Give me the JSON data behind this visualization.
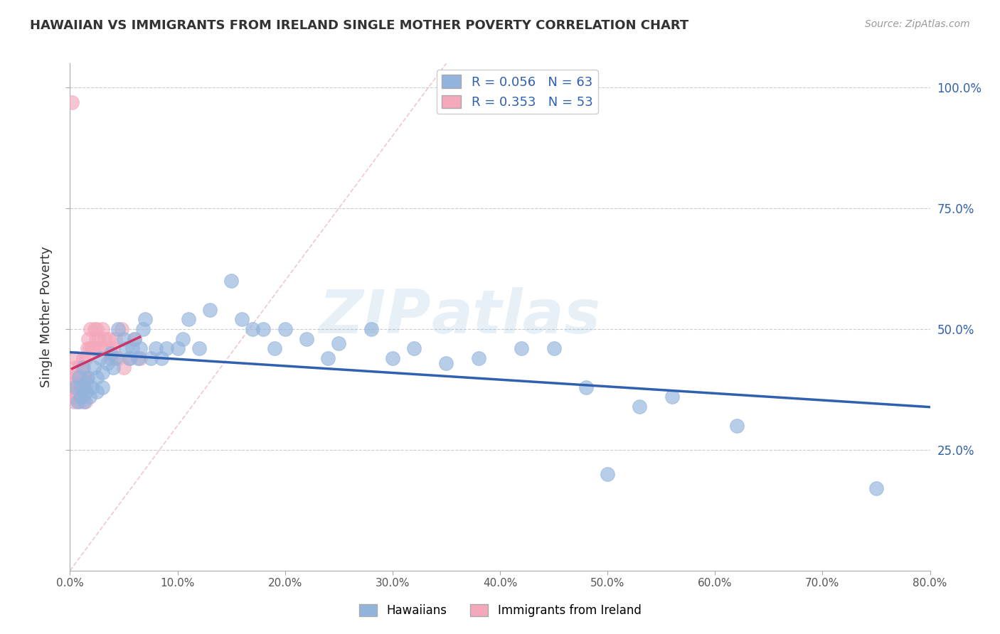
{
  "title": "HAWAIIAN VS IMMIGRANTS FROM IRELAND SINGLE MOTHER POVERTY CORRELATION CHART",
  "source": "Source: ZipAtlas.com",
  "ylabel": "Single Mother Poverty",
  "xlim": [
    0.0,
    0.8
  ],
  "ylim": [
    0.0,
    1.05
  ],
  "yticks": [
    0.25,
    0.5,
    0.75,
    1.0
  ],
  "xticks": [
    0.0,
    0.1,
    0.2,
    0.3,
    0.4,
    0.5,
    0.6,
    0.7,
    0.8
  ],
  "hawaiians_R": 0.056,
  "hawaiians_N": 63,
  "ireland_R": 0.353,
  "ireland_N": 53,
  "hawaiian_color": "#92B4DC",
  "ireland_color": "#F4A8BC",
  "trend_blue": "#3060B0",
  "trend_pink": "#CC3366",
  "diag_color": "#E8B0C0",
  "watermark_color": "#C8D8EE",
  "background_color": "#FFFFFF",
  "hawaiians_x": [
    0.005,
    0.007,
    0.008,
    0.01,
    0.01,
    0.012,
    0.013,
    0.015,
    0.015,
    0.016,
    0.018,
    0.02,
    0.022,
    0.025,
    0.025,
    0.028,
    0.03,
    0.03,
    0.035,
    0.038,
    0.04,
    0.042,
    0.045,
    0.05,
    0.052,
    0.055,
    0.058,
    0.06,
    0.063,
    0.065,
    0.068,
    0.07,
    0.075,
    0.08,
    0.085,
    0.09,
    0.1,
    0.105,
    0.11,
    0.12,
    0.13,
    0.15,
    0.16,
    0.17,
    0.18,
    0.19,
    0.2,
    0.22,
    0.24,
    0.25,
    0.28,
    0.3,
    0.32,
    0.35,
    0.38,
    0.42,
    0.45,
    0.48,
    0.5,
    0.53,
    0.56,
    0.62,
    0.75
  ],
  "hawaiians_y": [
    0.38,
    0.35,
    0.4,
    0.36,
    0.38,
    0.42,
    0.35,
    0.37,
    0.39,
    0.4,
    0.36,
    0.38,
    0.42,
    0.37,
    0.4,
    0.44,
    0.38,
    0.41,
    0.43,
    0.45,
    0.42,
    0.44,
    0.5,
    0.48,
    0.46,
    0.44,
    0.46,
    0.48,
    0.44,
    0.46,
    0.5,
    0.52,
    0.44,
    0.46,
    0.44,
    0.46,
    0.46,
    0.48,
    0.52,
    0.46,
    0.54,
    0.6,
    0.52,
    0.5,
    0.5,
    0.46,
    0.5,
    0.48,
    0.44,
    0.47,
    0.5,
    0.44,
    0.46,
    0.43,
    0.44,
    0.46,
    0.46,
    0.38,
    0.2,
    0.34,
    0.36,
    0.3,
    0.17
  ],
  "ireland_x": [
    0.002,
    0.003,
    0.003,
    0.004,
    0.004,
    0.005,
    0.005,
    0.005,
    0.006,
    0.006,
    0.007,
    0.007,
    0.008,
    0.008,
    0.008,
    0.009,
    0.009,
    0.01,
    0.01,
    0.011,
    0.011,
    0.012,
    0.012,
    0.013,
    0.013,
    0.014,
    0.015,
    0.015,
    0.016,
    0.017,
    0.018,
    0.019,
    0.02,
    0.022,
    0.023,
    0.024,
    0.025,
    0.027,
    0.028,
    0.03,
    0.032,
    0.034,
    0.036,
    0.038,
    0.04,
    0.042,
    0.045,
    0.048,
    0.05,
    0.055,
    0.06,
    0.065,
    0.002
  ],
  "ireland_y": [
    0.38,
    0.36,
    0.4,
    0.35,
    0.37,
    0.42,
    0.39,
    0.36,
    0.4,
    0.44,
    0.36,
    0.38,
    0.42,
    0.38,
    0.4,
    0.35,
    0.37,
    0.4,
    0.37,
    0.42,
    0.38,
    0.4,
    0.44,
    0.38,
    0.4,
    0.35,
    0.44,
    0.4,
    0.46,
    0.48,
    0.46,
    0.5,
    0.46,
    0.46,
    0.5,
    0.48,
    0.5,
    0.48,
    0.46,
    0.5,
    0.48,
    0.46,
    0.48,
    0.44,
    0.46,
    0.48,
    0.44,
    0.5,
    0.42,
    0.44,
    0.48,
    0.44,
    0.97
  ]
}
